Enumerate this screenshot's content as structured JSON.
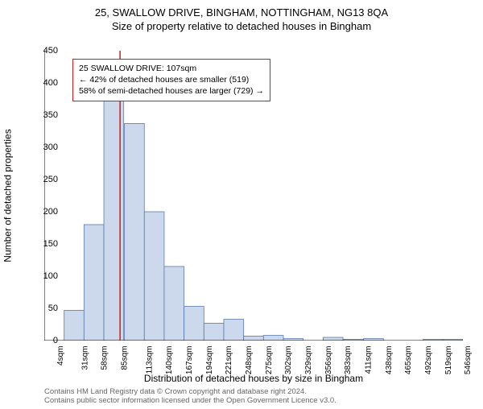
{
  "title": "25, SWALLOW DRIVE, BINGHAM, NOTTINGHAM, NG13 8QA",
  "subtitle": "Size of property relative to detached houses in Bingham",
  "ylabel": "Number of detached properties",
  "xlabel": "Distribution of detached houses by size in Bingham",
  "footer_line1": "Contains HM Land Registry data © Crown copyright and database right 2024.",
  "footer_line2": "Contains public sector information licensed under the Open Government Licence v3.0.",
  "chart": {
    "type": "histogram",
    "ylim": [
      0,
      450
    ],
    "ytick_step": 50,
    "x_tick_labels": [
      "4sqm",
      "31sqm",
      "58sqm",
      "85sqm",
      "113sqm",
      "140sqm",
      "167sqm",
      "194sqm",
      "221sqm",
      "248sqm",
      "275sqm",
      "302sqm",
      "329sqm",
      "356sqm",
      "383sqm",
      "411sqm",
      "438sqm",
      "465sqm",
      "492sqm",
      "519sqm",
      "546sqm"
    ],
    "x_tick_values": [
      4,
      31,
      58,
      85,
      113,
      140,
      167,
      194,
      221,
      248,
      275,
      302,
      329,
      356,
      383,
      411,
      438,
      465,
      492,
      519,
      546
    ],
    "bin_width": 27,
    "bars": [
      {
        "x_start": 4,
        "value": 0
      },
      {
        "x_start": 31,
        "value": 47
      },
      {
        "x_start": 58,
        "value": 180
      },
      {
        "x_start": 85,
        "value": 375
      },
      {
        "x_start": 113,
        "value": 337
      },
      {
        "x_start": 140,
        "value": 200
      },
      {
        "x_start": 167,
        "value": 115
      },
      {
        "x_start": 194,
        "value": 53
      },
      {
        "x_start": 221,
        "value": 27
      },
      {
        "x_start": 248,
        "value": 33
      },
      {
        "x_start": 275,
        "value": 7
      },
      {
        "x_start": 302,
        "value": 8
      },
      {
        "x_start": 329,
        "value": 3
      },
      {
        "x_start": 356,
        "value": 0
      },
      {
        "x_start": 383,
        "value": 5
      },
      {
        "x_start": 411,
        "value": 2
      },
      {
        "x_start": 438,
        "value": 3
      },
      {
        "x_start": 465,
        "value": 0
      },
      {
        "x_start": 492,
        "value": 0
      },
      {
        "x_start": 519,
        "value": 2
      },
      {
        "x_start": 546,
        "value": 2
      }
    ],
    "bar_fill": "#ccd9ed",
    "bar_stroke": "#5a78b0",
    "axis_color": "#000000",
    "background_color": "#ffffff",
    "marker_line_x": 107,
    "marker_line_color": "#d91818",
    "marker_line_width": 1.5
  },
  "annotation": {
    "line1": "25 SWALLOW DRIVE: 107sqm",
    "line2": "← 42% of detached houses are smaller (519)",
    "line3": "58% of semi-detached houses are larger (729) →",
    "border_color": "#d91818",
    "bg_color": "#ffffff"
  }
}
